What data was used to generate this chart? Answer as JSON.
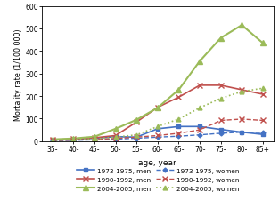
{
  "age_labels": [
    "35-",
    "40-",
    "45-",
    "50-",
    "55-",
    "60-",
    "65-",
    "70-",
    "75-",
    "80-",
    "85+"
  ],
  "age_x": [
    0,
    1,
    2,
    3,
    4,
    5,
    6,
    7,
    8,
    9,
    10
  ],
  "series": {
    "1973-1975, men": {
      "values": [
        5,
        8,
        13,
        20,
        18,
        55,
        65,
        65,
        52,
        40,
        30
      ],
      "color": "#4472C4",
      "linestyle": "-",
      "marker": "s",
      "markersize": 3,
      "linewidth": 1.2
    },
    "1990-1992, men": {
      "values": [
        6,
        10,
        15,
        25,
        85,
        150,
        195,
        248,
        248,
        228,
        208
      ],
      "color": "#C0504D",
      "linestyle": "-",
      "marker": "x",
      "markersize": 4,
      "linewidth": 1.2
    },
    "2004-2005, men": {
      "values": [
        8,
        12,
        20,
        55,
        95,
        148,
        228,
        355,
        458,
        515,
        435
      ],
      "color": "#9BBB59",
      "linestyle": "-",
      "marker": "^",
      "markersize": 4,
      "linewidth": 1.5
    },
    "1990-1992, women": {
      "values": [
        3,
        5,
        8,
        12,
        18,
        25,
        35,
        50,
        92,
        98,
        92
      ],
      "color": "#C0504D",
      "linestyle": "--",
      "marker": "x",
      "markersize": 4,
      "linewidth": 1.0
    },
    "1973-1975, women": {
      "values": [
        2,
        4,
        6,
        9,
        13,
        18,
        22,
        28,
        35,
        40,
        38
      ],
      "color": "#4472C4",
      "linestyle": "--",
      "marker": "D",
      "markersize": 2.5,
      "linewidth": 1.0
    },
    "2004-2005, women": {
      "values": [
        4,
        7,
        10,
        18,
        28,
        65,
        98,
        148,
        190,
        220,
        235
      ],
      "color": "#9BBB59",
      "linestyle": ":",
      "marker": "^",
      "markersize": 3.5,
      "linewidth": 1.2
    }
  },
  "legend_order": [
    [
      "1973-1975, men",
      "1990-1992, men"
    ],
    [
      "2004-2005, men",
      "1973-1975, women"
    ],
    [
      "1990-1992, women",
      "2004-2005, women"
    ]
  ],
  "xlabel": "age, year",
  "ylabel": "Mortality rate (1/100 000)",
  "ylim": [
    0,
    600
  ],
  "yticks": [
    0,
    100,
    200,
    300,
    400,
    500,
    600
  ],
  "bg_color": "#FFFFFF"
}
